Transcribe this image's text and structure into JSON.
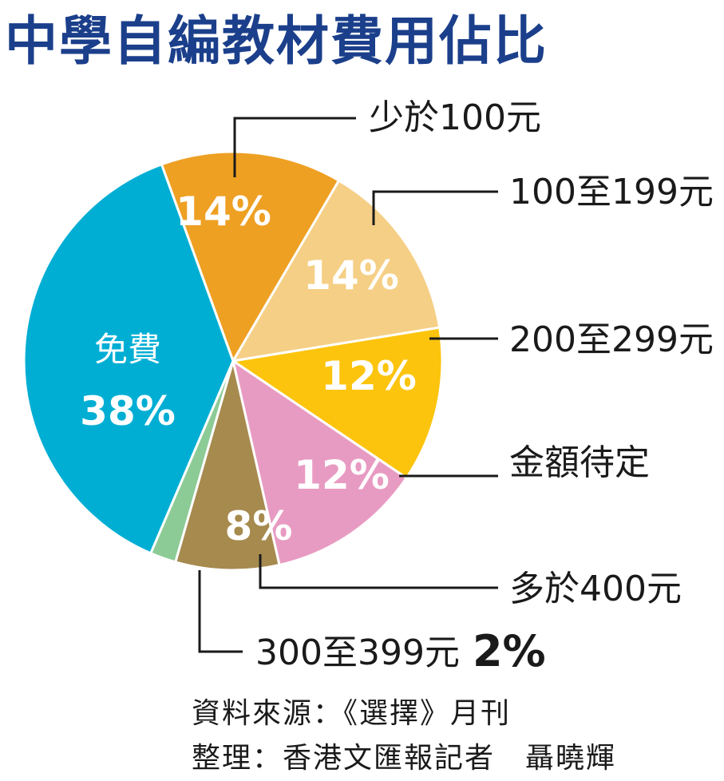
{
  "chart_data": {
    "type": "pie",
    "title": "中學自編教材費用佔比",
    "slices": [
      {
        "label": "少於100元",
        "value": 14,
        "display": "14%",
        "color": "#eea023"
      },
      {
        "label": "100至199元",
        "value": 14,
        "display": "14%",
        "color": "#f5cf85"
      },
      {
        "label": "200至299元",
        "value": 12,
        "display": "12%",
        "color": "#fcc40d"
      },
      {
        "label": "金額待定",
        "value": 12,
        "display": "12%",
        "color": "#e89bc2"
      },
      {
        "label": "多於400元",
        "value": 8,
        "display": "8%",
        "color": "#a68a4e"
      },
      {
        "label": "300至399元",
        "value": 2,
        "display": "2%",
        "color": "#8ccb95"
      },
      {
        "label": "免費",
        "value": 38,
        "display": "38%",
        "color": "#00aed4"
      }
    ]
  },
  "source": "資料來源：《選擇》月刊",
  "compiled_by": "整理：香港文匯報記者　聶曉輝"
}
